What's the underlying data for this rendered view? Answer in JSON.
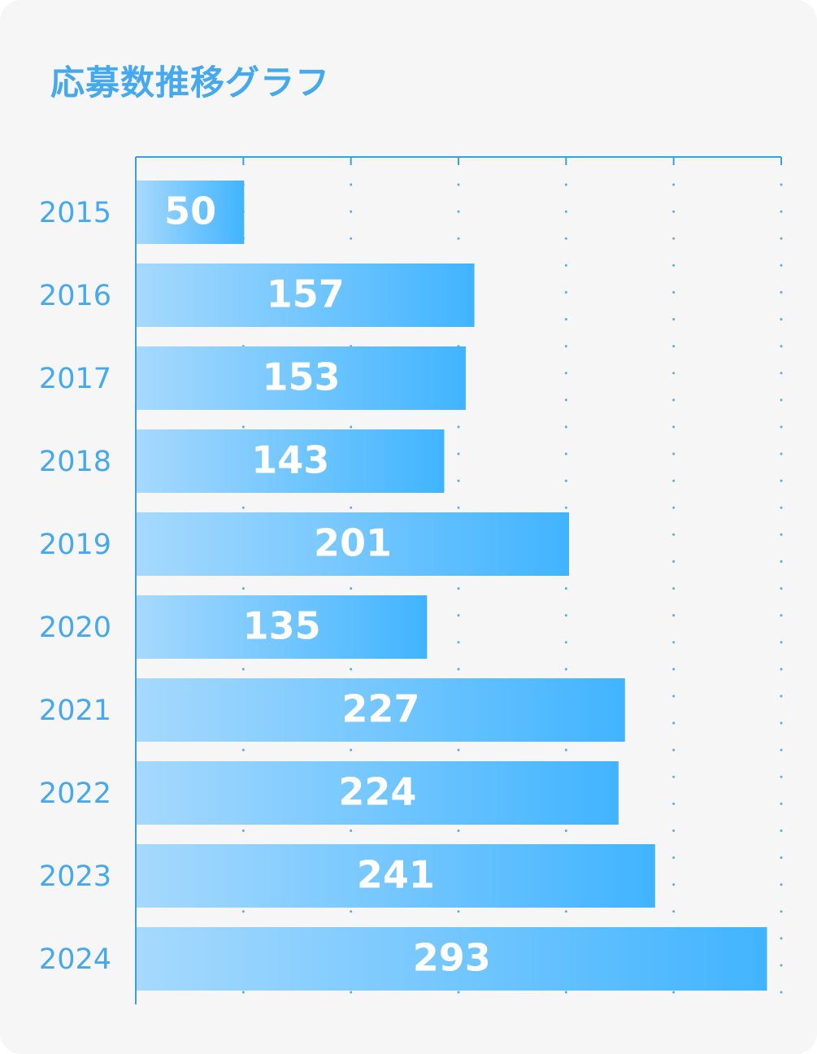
{
  "title": "応募数推移グラフ",
  "colors": {
    "accent": "#46a9ee",
    "axis": "#3aa0e6",
    "grid_dot": "#55b0ec",
    "bar_start": "#a6d9fd",
    "bar_end": "#41b4ff",
    "background": "#f6f6f6"
  },
  "chart_data": {
    "type": "bar",
    "orientation": "horizontal",
    "title": "応募数推移グラフ",
    "xlabel": "",
    "ylabel": "",
    "categories": [
      "2015",
      "2016",
      "2017",
      "2018",
      "2019",
      "2020",
      "2021",
      "2022",
      "2023",
      "2024"
    ],
    "values": [
      50,
      157,
      153,
      143,
      201,
      135,
      227,
      224,
      241,
      293
    ],
    "xlim": [
      0,
      300
    ],
    "grid_step": 50,
    "grid": true,
    "data_labels": true,
    "legend": "none"
  }
}
